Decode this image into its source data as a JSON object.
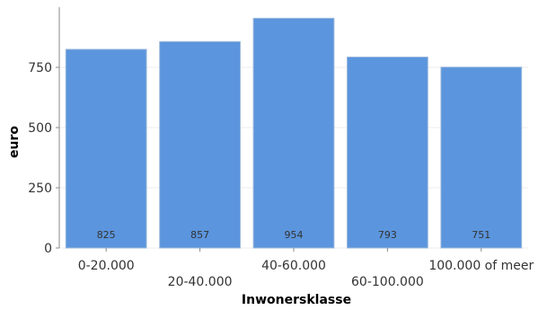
{
  "chart_data": {
    "type": "bar",
    "categories": [
      "0-20.000",
      "20-40.000",
      "40-60.000",
      "60-100.000",
      "100.000 of meer"
    ],
    "values": [
      825,
      857,
      954,
      793,
      751
    ],
    "data_labels": [
      "825",
      "857",
      "954",
      "793",
      "751"
    ],
    "xlabel": "Inwonersklasse",
    "ylabel": "euro",
    "ylim": [
      0,
      1000
    ],
    "yticks": [
      0,
      250,
      500,
      750
    ],
    "grid": true,
    "legend": "none",
    "colors": {
      "bar": "#5b95dd",
      "label": "#333333"
    }
  }
}
